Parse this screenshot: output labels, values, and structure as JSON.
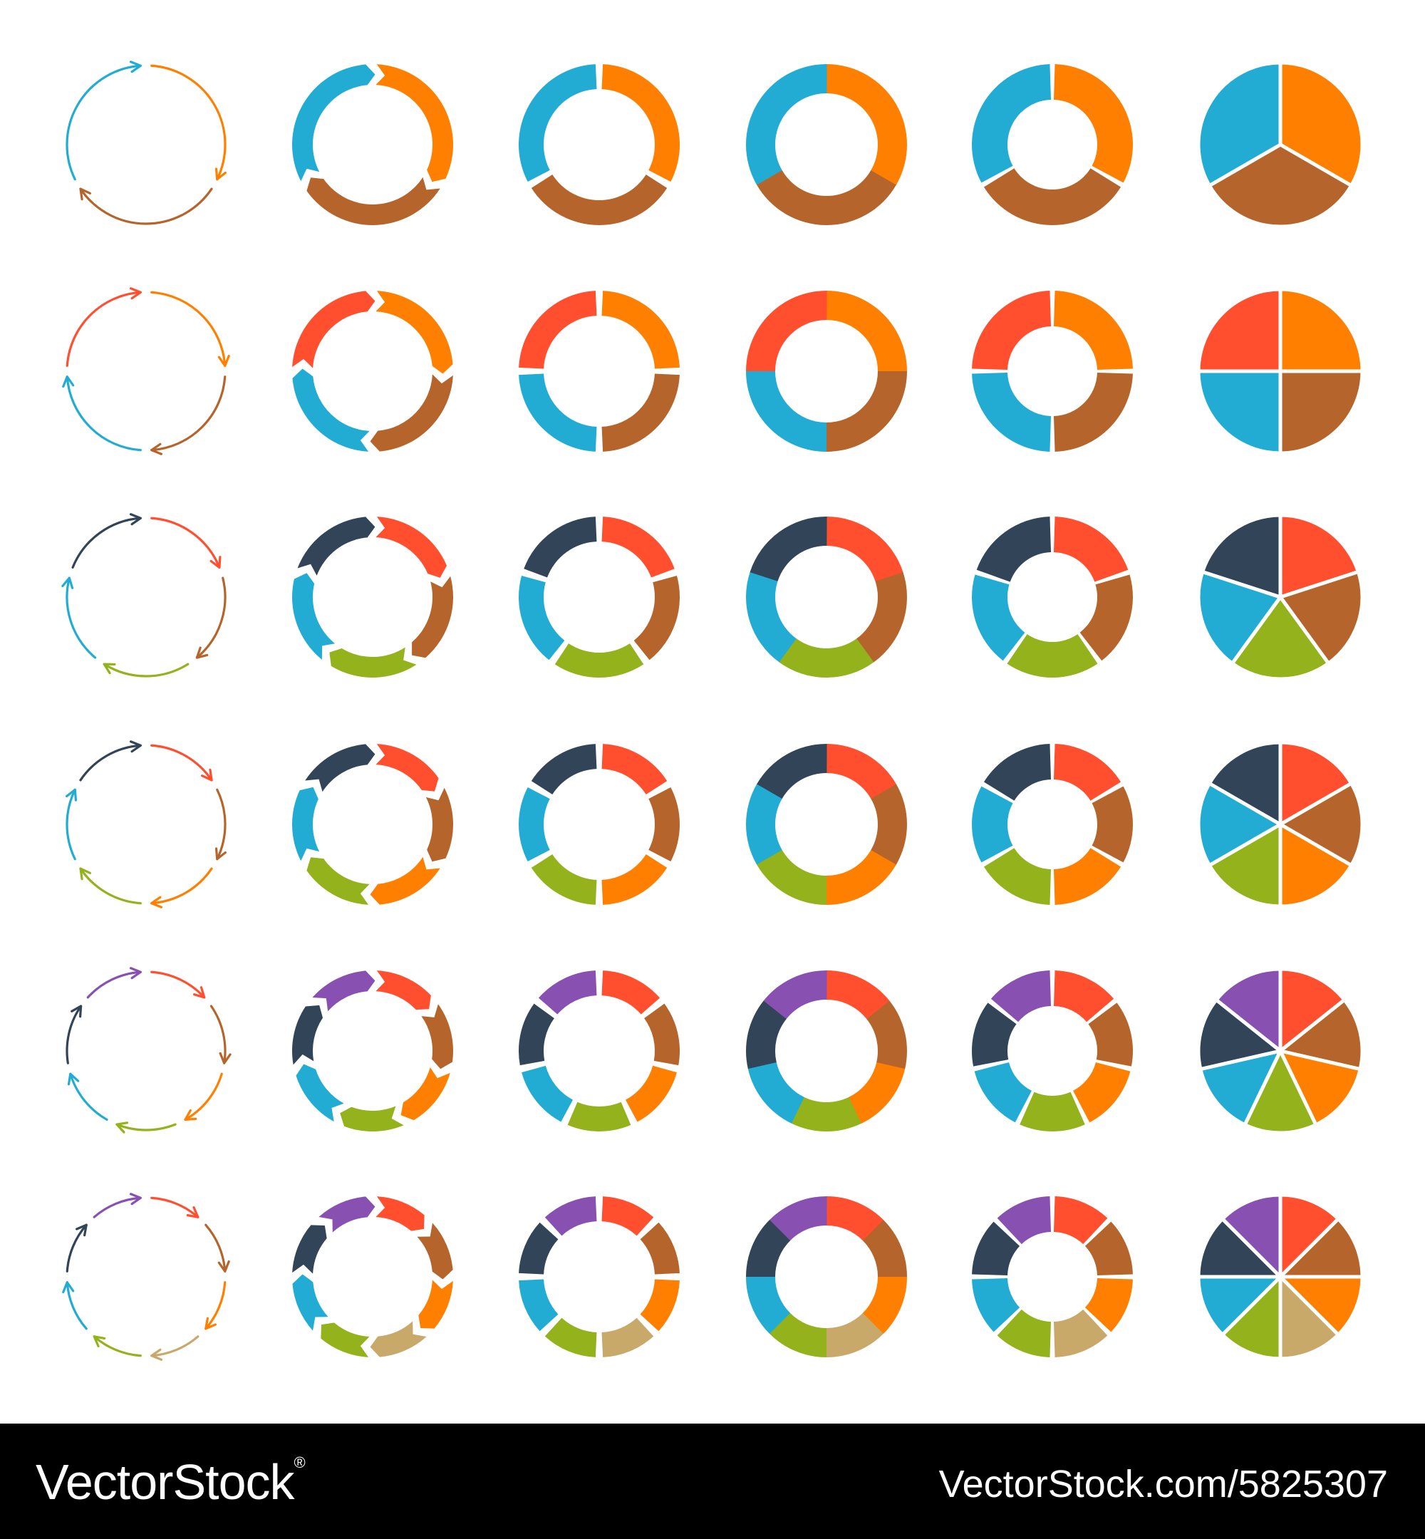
{
  "palette": {
    "orange": "#FF7F00",
    "brown": "#B5652B",
    "blue": "#22ACD3",
    "red": "#FF4F2F",
    "green": "#93B21B",
    "navy": "#324457",
    "purple": "#8850B1",
    "tan": "#C9A96A",
    "teal": "#0096BB",
    "background": "#FFFFFF",
    "footer_background": "#000000",
    "footer_text": "#FFFFFF"
  },
  "grid": {
    "columns": [
      "arrow-outline-cycle",
      "arrow-band-ring",
      "gapped-ring",
      "solid-ring",
      "puzzle-ring",
      "pie"
    ],
    "rows": [
      {
        "segments": 3,
        "colors": [
          "orange",
          "brown",
          "blue"
        ]
      },
      {
        "segments": 4,
        "colors": [
          "orange",
          "brown",
          "blue",
          "red"
        ]
      },
      {
        "segments": 5,
        "colors": [
          "red",
          "brown",
          "green",
          "blue",
          "navy"
        ]
      },
      {
        "segments": 6,
        "colors": [
          "red",
          "brown",
          "orange",
          "green",
          "blue",
          "navy"
        ]
      },
      {
        "segments": 7,
        "colors": [
          "red",
          "brown",
          "orange",
          "green",
          "blue",
          "navy",
          "purple"
        ]
      },
      {
        "segments": 8,
        "colors": [
          "red",
          "brown",
          "orange",
          "tan",
          "green",
          "blue",
          "navy",
          "purple"
        ]
      }
    ]
  },
  "footer": {
    "brand": "VectorStock",
    "brand_symbol": "®",
    "url_id": "VectorStock.com/5825307"
  }
}
